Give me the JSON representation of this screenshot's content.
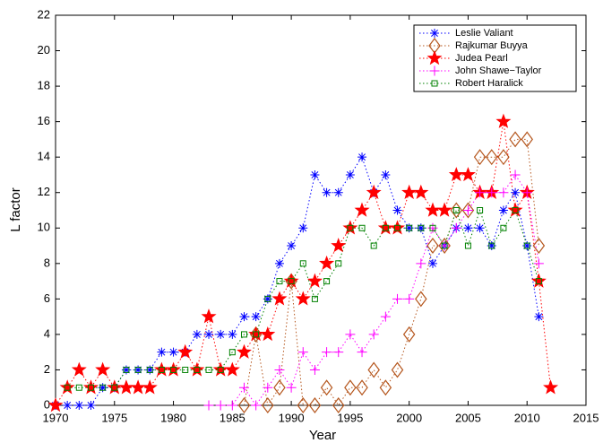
{
  "chart_data": {
    "type": "line",
    "xlabel": "Year",
    "ylabel": "L factor",
    "x": [
      1970,
      1971,
      1972,
      1973,
      1974,
      1975,
      1976,
      1977,
      1978,
      1979,
      1980,
      1981,
      1982,
      1983,
      1984,
      1985,
      1986,
      1987,
      1988,
      1989,
      1990,
      1991,
      1992,
      1993,
      1994,
      1995,
      1996,
      1997,
      1998,
      1999,
      2000,
      2001,
      2002,
      2003,
      2004,
      2005,
      2006,
      2007,
      2008,
      2009,
      2010,
      2011,
      2012
    ],
    "series": [
      {
        "name": "Leslie Valiant",
        "color": "#0000ff",
        "marker": "asterisk",
        "values": [
          0,
          0,
          0,
          0,
          1,
          1,
          2,
          2,
          2,
          3,
          3,
          3,
          4,
          4,
          4,
          4,
          5,
          5,
          6,
          8,
          9,
          10,
          13,
          12,
          12,
          13,
          14,
          12,
          13,
          11,
          10,
          10,
          8,
          9,
          10,
          10,
          10,
          9,
          11,
          12,
          9,
          5,
          null
        ]
      },
      {
        "name": "Rajkumar Buyya",
        "color": "#b5561d",
        "marker": "diamond",
        "values": [
          null,
          null,
          null,
          null,
          null,
          null,
          null,
          null,
          null,
          null,
          null,
          null,
          null,
          null,
          null,
          null,
          0,
          4,
          0,
          1,
          7,
          0,
          0,
          1,
          0,
          1,
          1,
          2,
          1,
          2,
          4,
          6,
          9,
          9,
          11,
          11,
          14,
          14,
          14,
          15,
          15,
          9,
          null
        ]
      },
      {
        "name": "Judea Pearl",
        "color": "#ff0000",
        "marker": "star",
        "values": [
          0,
          1,
          2,
          1,
          2,
          1,
          1,
          1,
          1,
          2,
          2,
          3,
          2,
          5,
          2,
          2,
          3,
          4,
          4,
          6,
          7,
          6,
          7,
          8,
          9,
          10,
          11,
          12,
          10,
          10,
          12,
          12,
          11,
          11,
          13,
          13,
          12,
          12,
          16,
          11,
          12,
          7,
          1
        ]
      },
      {
        "name": "John Shawe−Taylor",
        "color": "#ff00ff",
        "marker": "plus",
        "values": [
          null,
          null,
          null,
          null,
          null,
          null,
          null,
          null,
          null,
          null,
          null,
          null,
          null,
          0,
          0,
          0,
          1,
          0,
          1,
          2,
          1,
          3,
          2,
          3,
          3,
          4,
          3,
          4,
          5,
          6,
          6,
          8,
          10,
          9,
          10,
          11,
          12,
          12,
          12,
          13,
          12,
          8,
          null
        ]
      },
      {
        "name": "Robert Haralick",
        "color": "#008000",
        "marker": "square",
        "values": [
          null,
          1,
          1,
          1,
          1,
          1,
          2,
          2,
          2,
          2,
          2,
          2,
          2,
          2,
          2,
          3,
          4,
          4,
          6,
          7,
          7,
          8,
          6,
          7,
          8,
          10,
          10,
          9,
          10,
          10,
          10,
          10,
          10,
          9,
          11,
          9,
          11,
          9,
          10,
          11,
          9,
          7,
          null
        ]
      }
    ],
    "xlim": [
      1970,
      2015
    ],
    "xticks": [
      1970,
      1975,
      1980,
      1985,
      1990,
      1995,
      2000,
      2005,
      2010,
      2015
    ],
    "ylim": [
      0,
      22
    ],
    "yticks": [
      0,
      2,
      4,
      6,
      8,
      10,
      12,
      14,
      16,
      18,
      20,
      22
    ],
    "grid": false,
    "legend": "upper right"
  }
}
